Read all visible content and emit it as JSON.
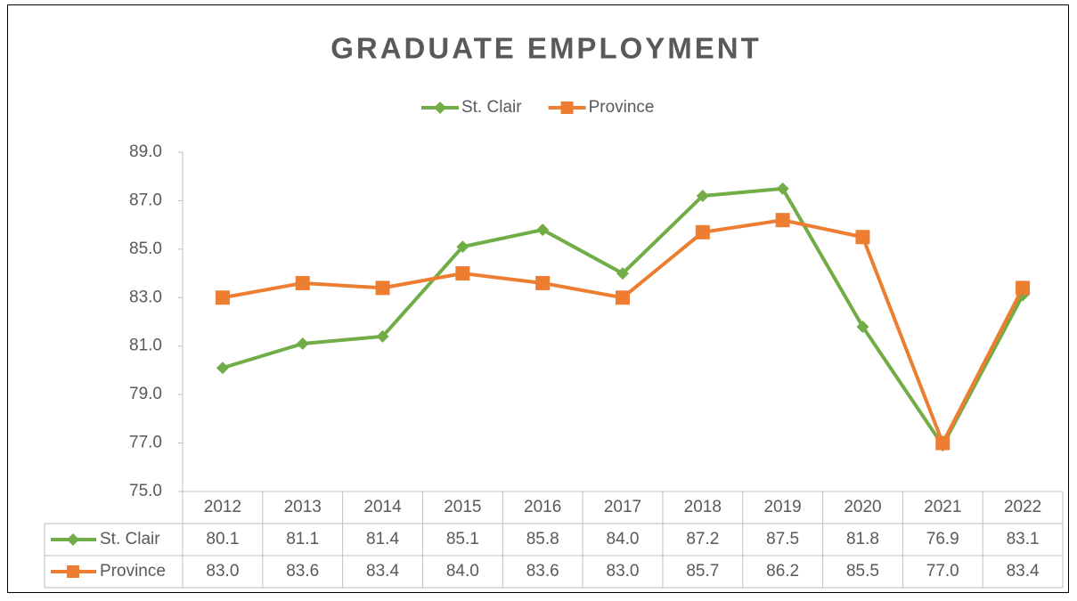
{
  "chart_data": {
    "type": "line",
    "title": "GRADUATE EMPLOYMENT",
    "categories": [
      "2012",
      "2013",
      "2014",
      "2015",
      "2016",
      "2017",
      "2018",
      "2019",
      "2020",
      "2021",
      "2022"
    ],
    "series": [
      {
        "name": "St. Clair",
        "color": "#70ad47",
        "marker": "diamond",
        "values": [
          80.1,
          81.1,
          81.4,
          85.1,
          85.8,
          84.0,
          87.2,
          87.5,
          81.8,
          76.9,
          83.1
        ],
        "value_labels": [
          "80.1",
          "81.1",
          "81.4",
          "85.1",
          "85.8",
          "84.0",
          "87.2",
          "87.5",
          "81.8",
          "76.9",
          "83.1"
        ]
      },
      {
        "name": "Province",
        "color": "#ed7d31",
        "marker": "square",
        "values": [
          83.0,
          83.6,
          83.4,
          84.0,
          83.6,
          83.0,
          85.7,
          86.2,
          85.5,
          77.0,
          83.4
        ],
        "value_labels": [
          "83.0",
          "83.6",
          "83.4",
          "84.0",
          "83.6",
          "83.0",
          "85.7",
          "86.2",
          "85.5",
          "77.0",
          "83.4"
        ]
      }
    ],
    "ylim": [
      75,
      89
    ],
    "yticks": [
      {
        "value": 75,
        "label": "75.0"
      },
      {
        "value": 77,
        "label": "77.0"
      },
      {
        "value": 79,
        "label": "79.0"
      },
      {
        "value": 81,
        "label": "81.0"
      },
      {
        "value": 83,
        "label": "83.0"
      },
      {
        "value": 85,
        "label": "85.0"
      },
      {
        "value": 87,
        "label": "87.0"
      },
      {
        "value": 89,
        "label": "89.0"
      }
    ],
    "legend": "top",
    "grid": false,
    "data_table": true
  }
}
